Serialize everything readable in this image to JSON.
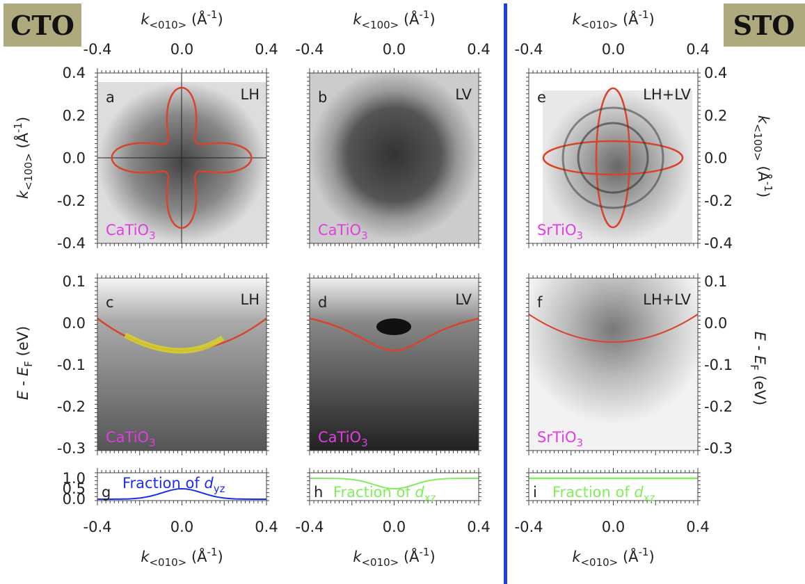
{
  "labels": {
    "left": "CTO",
    "right": "STO"
  },
  "axes": {
    "top": [
      {
        "symbol": "k",
        "subscript": "<010>",
        "unit": " (Å",
        "superscript": "-1",
        "close": ")"
      },
      {
        "symbol": "k",
        "subscript": "<100>",
        "unit": " (Å",
        "superscript": "-1",
        "close": ")"
      },
      {
        "symbol": "k",
        "subscript": "<010>",
        "unit": " (Å",
        "superscript": "-1",
        "close": ")"
      }
    ],
    "bottom": [
      {
        "symbol": "k",
        "subscript": "<010>",
        "unit": " (Å",
        "superscript": "-1",
        "close": ")"
      },
      {
        "symbol": "k",
        "subscript": "<010>",
        "unit": " (Å",
        "superscript": "-1",
        "close": ")"
      },
      {
        "symbol": "k",
        "subscript": "<010>",
        "unit": " (Å",
        "superscript": "-1",
        "close": ")"
      }
    ],
    "left_row1": {
      "symbol": "k",
      "subscript": "<100>",
      "unit": " (Å",
      "superscript": "-1",
      "close": ")"
    },
    "right_row1": {
      "symbol": "k",
      "subscript": "<100>",
      "unit": " (Å",
      "superscript": "-1",
      "close": ")"
    },
    "left_row2": {
      "symbol": "E",
      "minus": " - ",
      "symbol2": "E",
      "subscript": "F",
      "unit": " (eV)"
    },
    "right_row2": {
      "symbol": "E",
      "minus": " - ",
      "symbol2": "E",
      "subscript": "F",
      "unit": " (eV)"
    }
  },
  "x_tick_labels": [
    "-0.4",
    "0.0",
    "0.4"
  ],
  "y_tick_labels_k": [
    "0.4",
    "0.2",
    "0.0",
    "-0.2",
    "-0.4"
  ],
  "y_tick_labels_e": [
    "0.1",
    "0.0",
    "-0.1",
    "-0.2",
    "-0.3"
  ],
  "y_tick_labels_fraction": [
    "1.0",
    "0.5",
    "0.0"
  ],
  "panels": [
    {
      "letter": "a",
      "polarization": "LH",
      "material": {
        "formula": "CaTiO",
        "subscript": "3"
      }
    },
    {
      "letter": "b",
      "polarization": "LV",
      "material": {
        "formula": "CaTiO",
        "subscript": "3"
      }
    },
    {
      "letter": "e",
      "polarization": "LH+LV",
      "material": {
        "formula": "SrTiO",
        "subscript": "3"
      }
    },
    {
      "letter": "c",
      "polarization": "LH",
      "material": {
        "formula": "CaTiO",
        "subscript": "3"
      }
    },
    {
      "letter": "d",
      "polarization": "LV",
      "material": {
        "formula": "CaTiO",
        "subscript": "3"
      }
    },
    {
      "letter": "f",
      "polarization": "LH+LV",
      "material": {
        "formula": "SrTiO",
        "subscript": "3"
      }
    },
    {
      "letter": "g",
      "caption": {
        "text": "Fraction of ",
        "symbol": "d",
        "subscript": "yz"
      }
    },
    {
      "letter": "h",
      "caption": {
        "text": "Fraction of ",
        "symbol": "d",
        "subscript": "xz"
      }
    },
    {
      "letter": "i",
      "caption": {
        "text": "Fraction of ",
        "symbol": "d",
        "subscript": "xz"
      }
    }
  ]
}
